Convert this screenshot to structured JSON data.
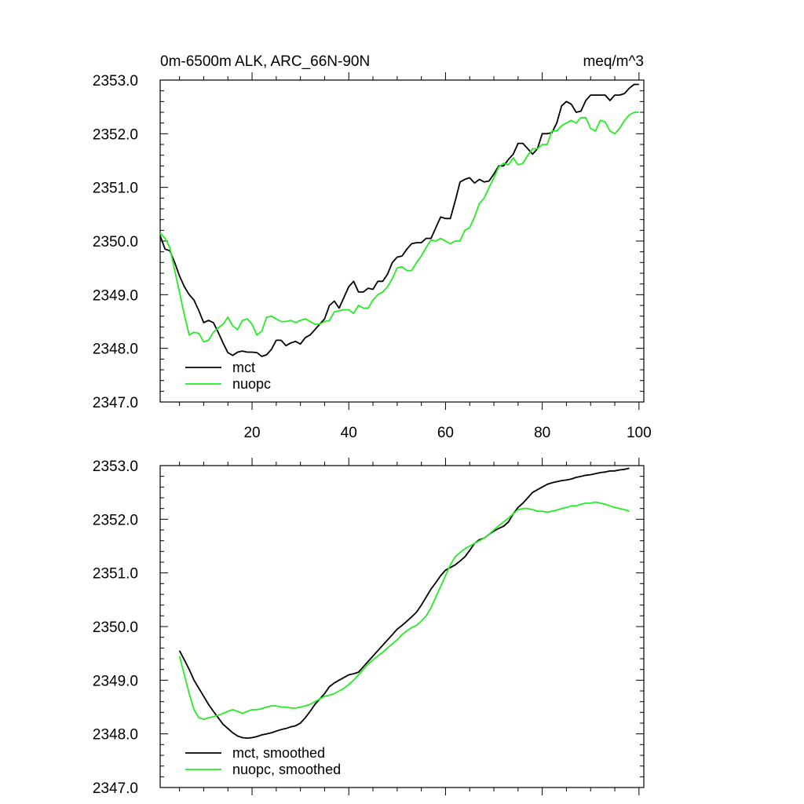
{
  "chart_data": [
    {
      "type": "line",
      "title": "0m-6500m ALK, ARC_66N-90N",
      "units": "meq/m^3",
      "xlim": [
        1,
        101
      ],
      "ylim": [
        2347.0,
        2353.0
      ],
      "xticks": [
        20,
        40,
        60,
        80,
        100
      ],
      "xtick_labels": [
        "20",
        "40",
        "60",
        "80",
        "100"
      ],
      "yticks": [
        2347.0,
        2348.0,
        2349.0,
        2350.0,
        2351.0,
        2352.0,
        2353.0
      ],
      "ytick_labels": [
        "2347.0",
        "2348.0",
        "2349.0",
        "2350.0",
        "2351.0",
        "2352.0",
        "2353.0"
      ],
      "legend_position": "bottom-left",
      "series": [
        {
          "name": "mct",
          "color": "#000000",
          "x": [
            1,
            2,
            3,
            4,
            5,
            6,
            7,
            8,
            9,
            10,
            11,
            12,
            13,
            14,
            15,
            16,
            17,
            18,
            19,
            20,
            21,
            22,
            23,
            24,
            25,
            26,
            27,
            28,
            29,
            30,
            31,
            32,
            33,
            34,
            35,
            36,
            37,
            38,
            39,
            40,
            41,
            42,
            43,
            44,
            45,
            46,
            47,
            48,
            49,
            50,
            51,
            52,
            53,
            54,
            55,
            56,
            57,
            58,
            59,
            60,
            61,
            62,
            63,
            64,
            65,
            66,
            67,
            68,
            69,
            70,
            71,
            72,
            73,
            74,
            75,
            76,
            77,
            78,
            79,
            80,
            81,
            82,
            83,
            84,
            85,
            86,
            87,
            88,
            89,
            90,
            91,
            92,
            93,
            94,
            95,
            96,
            97,
            98,
            99,
            100
          ],
          "values": [
            2350.1,
            2349.85,
            2349.82,
            2349.6,
            2349.35,
            2349.15,
            2349.0,
            2348.9,
            2348.7,
            2348.48,
            2348.52,
            2348.48,
            2348.3,
            2348.1,
            2347.92,
            2347.87,
            2347.93,
            2347.95,
            2347.93,
            2347.93,
            2347.92,
            2347.85,
            2347.88,
            2347.98,
            2348.15,
            2348.15,
            2348.05,
            2348.1,
            2348.13,
            2348.08,
            2348.2,
            2348.25,
            2348.35,
            2348.45,
            2348.55,
            2348.8,
            2348.88,
            2348.75,
            2348.95,
            2349.15,
            2349.25,
            2349.05,
            2349.05,
            2349.12,
            2349.1,
            2349.25,
            2349.25,
            2349.38,
            2349.6,
            2349.7,
            2349.72,
            2349.85,
            2349.95,
            2349.97,
            2349.97,
            2350.05,
            2350.05,
            2350.25,
            2350.45,
            2350.42,
            2350.42,
            2350.75,
            2351.1,
            2351.15,
            2351.18,
            2351.08,
            2351.15,
            2351.1,
            2351.12,
            2351.25,
            2351.4,
            2351.4,
            2351.52,
            2351.62,
            2351.82,
            2351.82,
            2351.72,
            2351.62,
            2351.72,
            2352.0,
            2352.0,
            2352.02,
            2352.2,
            2352.52,
            2352.6,
            2352.55,
            2352.4,
            2352.42,
            2352.62,
            2352.72,
            2352.72,
            2352.72,
            2352.72,
            2352.62,
            2352.72,
            2352.72,
            2352.75,
            2352.85,
            2352.92,
            2352.92
          ]
        },
        {
          "name": "nuopc",
          "color": "#22ee22",
          "x": [
            1,
            2,
            3,
            4,
            5,
            6,
            7,
            8,
            9,
            10,
            11,
            12,
            13,
            14,
            15,
            16,
            17,
            18,
            19,
            20,
            21,
            22,
            23,
            24,
            25,
            26,
            27,
            28,
            29,
            30,
            31,
            32,
            33,
            34,
            35,
            36,
            37,
            38,
            39,
            40,
            41,
            42,
            43,
            44,
            45,
            46,
            47,
            48,
            49,
            50,
            51,
            52,
            53,
            54,
            55,
            56,
            57,
            58,
            59,
            60,
            61,
            62,
            63,
            64,
            65,
            66,
            67,
            68,
            69,
            70,
            71,
            72,
            73,
            74,
            75,
            76,
            77,
            78,
            79,
            80,
            81,
            82,
            83,
            84,
            85,
            86,
            87,
            88,
            89,
            90,
            91,
            92,
            93,
            94,
            95,
            96,
            97,
            98,
            99,
            100
          ],
          "values": [
            2350.15,
            2350.05,
            2349.88,
            2349.45,
            2349.05,
            2348.62,
            2348.25,
            2348.3,
            2348.28,
            2348.12,
            2348.15,
            2348.3,
            2348.38,
            2348.45,
            2348.58,
            2348.42,
            2348.35,
            2348.52,
            2348.55,
            2348.45,
            2348.25,
            2348.32,
            2348.58,
            2348.6,
            2348.55,
            2348.5,
            2348.5,
            2348.52,
            2348.48,
            2348.52,
            2348.55,
            2348.5,
            2348.45,
            2348.45,
            2348.5,
            2348.52,
            2348.68,
            2348.7,
            2348.72,
            2348.72,
            2348.65,
            2348.8,
            2348.75,
            2348.75,
            2348.9,
            2349.0,
            2349.05,
            2349.15,
            2349.3,
            2349.5,
            2349.52,
            2349.45,
            2349.45,
            2349.6,
            2349.72,
            2349.88,
            2350.02,
            2350.0,
            2350.05,
            2350.0,
            2349.95,
            2350.0,
            2350.0,
            2350.2,
            2350.25,
            2350.45,
            2350.7,
            2350.8,
            2351.0,
            2351.18,
            2351.38,
            2351.45,
            2351.42,
            2351.55,
            2351.42,
            2351.45,
            2351.6,
            2351.72,
            2351.72,
            2351.8,
            2351.8,
            2352.05,
            2352.05,
            2352.15,
            2352.2,
            2352.25,
            2352.2,
            2352.3,
            2352.3,
            2352.1,
            2352.05,
            2352.25,
            2352.22,
            2352.05,
            2352.0,
            2352.1,
            2352.25,
            2352.35,
            2352.4,
            2352.4
          ]
        }
      ]
    },
    {
      "type": "line",
      "title": "",
      "units": "",
      "xlim": [
        1,
        101
      ],
      "ylim": [
        2347.0,
        2353.0
      ],
      "xticks": [
        20,
        40,
        60,
        80,
        100
      ],
      "yticks": [
        2347.0,
        2348.0,
        2349.0,
        2350.0,
        2351.0,
        2352.0,
        2353.0
      ],
      "ytick_labels": [
        "2347.0",
        "2348.0",
        "2349.0",
        "2350.0",
        "2351.0",
        "2352.0",
        "2353.0"
      ],
      "legend_position": "bottom-left",
      "series": [
        {
          "name": "mct, smoothed",
          "color": "#000000",
          "x": [
            5,
            6,
            7,
            8,
            9,
            10,
            11,
            12,
            13,
            14,
            15,
            16,
            17,
            18,
            19,
            20,
            21,
            22,
            23,
            24,
            25,
            26,
            27,
            28,
            29,
            30,
            31,
            32,
            33,
            34,
            35,
            36,
            37,
            38,
            39,
            40,
            41,
            42,
            43,
            44,
            45,
            46,
            47,
            48,
            49,
            50,
            51,
            52,
            53,
            54,
            55,
            56,
            57,
            58,
            59,
            60,
            61,
            62,
            63,
            64,
            65,
            66,
            67,
            68,
            69,
            70,
            71,
            72,
            73,
            74,
            75,
            76,
            77,
            78,
            79,
            80,
            81,
            82,
            83,
            84,
            85,
            86,
            87,
            88,
            89,
            90,
            91,
            92,
            93,
            94,
            95,
            96,
            97,
            98
          ],
          "values": [
            2349.55,
            2349.38,
            2349.2,
            2349.0,
            2348.85,
            2348.7,
            2348.55,
            2348.42,
            2348.3,
            2348.18,
            2348.1,
            2348.02,
            2347.96,
            2347.93,
            2347.92,
            2347.93,
            2347.95,
            2347.98,
            2348.0,
            2348.02,
            2348.05,
            2348.08,
            2348.1,
            2348.13,
            2348.15,
            2348.2,
            2348.3,
            2348.42,
            2348.55,
            2348.65,
            2348.75,
            2348.88,
            2348.95,
            2349.0,
            2349.05,
            2349.1,
            2349.12,
            2349.15,
            2349.25,
            2349.35,
            2349.45,
            2349.55,
            2349.65,
            2349.75,
            2349.85,
            2349.95,
            2350.02,
            2350.1,
            2350.18,
            2350.27,
            2350.4,
            2350.55,
            2350.7,
            2350.82,
            2350.95,
            2351.05,
            2351.1,
            2351.15,
            2351.22,
            2351.3,
            2351.42,
            2351.55,
            2351.62,
            2351.65,
            2351.72,
            2351.78,
            2351.83,
            2351.87,
            2351.95,
            2352.1,
            2352.22,
            2352.3,
            2352.4,
            2352.5,
            2352.55,
            2352.6,
            2352.65,
            2352.68,
            2352.7,
            2352.72,
            2352.73,
            2352.75,
            2352.78,
            2352.8,
            2352.82,
            2352.83,
            2352.85,
            2352.87,
            2352.88,
            2352.9,
            2352.9,
            2352.92,
            2352.93,
            2352.95
          ]
        },
        {
          "name": "nuopc, smoothed",
          "color": "#22ee22",
          "x": [
            5,
            6,
            7,
            8,
            9,
            10,
            11,
            12,
            13,
            14,
            15,
            16,
            17,
            18,
            19,
            20,
            21,
            22,
            23,
            24,
            25,
            26,
            27,
            28,
            29,
            30,
            31,
            32,
            33,
            34,
            35,
            36,
            37,
            38,
            39,
            40,
            41,
            42,
            43,
            44,
            45,
            46,
            47,
            48,
            49,
            50,
            51,
            52,
            53,
            54,
            55,
            56,
            57,
            58,
            59,
            60,
            61,
            62,
            63,
            64,
            65,
            66,
            67,
            68,
            69,
            70,
            71,
            72,
            73,
            74,
            75,
            76,
            77,
            78,
            79,
            80,
            81,
            82,
            83,
            84,
            85,
            86,
            87,
            88,
            89,
            90,
            91,
            92,
            93,
            94,
            95,
            96,
            97,
            98
          ],
          "values": [
            2349.45,
            2349.1,
            2348.75,
            2348.45,
            2348.3,
            2348.27,
            2348.3,
            2348.32,
            2348.35,
            2348.38,
            2348.42,
            2348.45,
            2348.42,
            2348.38,
            2348.42,
            2348.45,
            2348.45,
            2348.47,
            2348.5,
            2348.52,
            2348.52,
            2348.5,
            2348.5,
            2348.48,
            2348.48,
            2348.5,
            2348.52,
            2348.55,
            2348.6,
            2348.65,
            2348.7,
            2348.72,
            2348.75,
            2348.8,
            2348.85,
            2348.92,
            2349.0,
            2349.1,
            2349.2,
            2349.3,
            2349.38,
            2349.45,
            2349.52,
            2349.6,
            2349.68,
            2349.75,
            2349.85,
            2349.92,
            2349.98,
            2350.02,
            2350.1,
            2350.2,
            2350.35,
            2350.55,
            2350.75,
            2350.95,
            2351.15,
            2351.3,
            2351.38,
            2351.45,
            2351.5,
            2351.55,
            2351.6,
            2351.65,
            2351.72,
            2351.8,
            2351.88,
            2351.95,
            2352.02,
            2352.1,
            2352.18,
            2352.2,
            2352.2,
            2352.18,
            2352.15,
            2352.15,
            2352.13,
            2352.15,
            2352.17,
            2352.2,
            2352.22,
            2352.25,
            2352.25,
            2352.28,
            2352.3,
            2352.3,
            2352.32,
            2352.3,
            2352.28,
            2352.25,
            2352.22,
            2352.2,
            2352.18,
            2352.15
          ]
        }
      ]
    }
  ]
}
